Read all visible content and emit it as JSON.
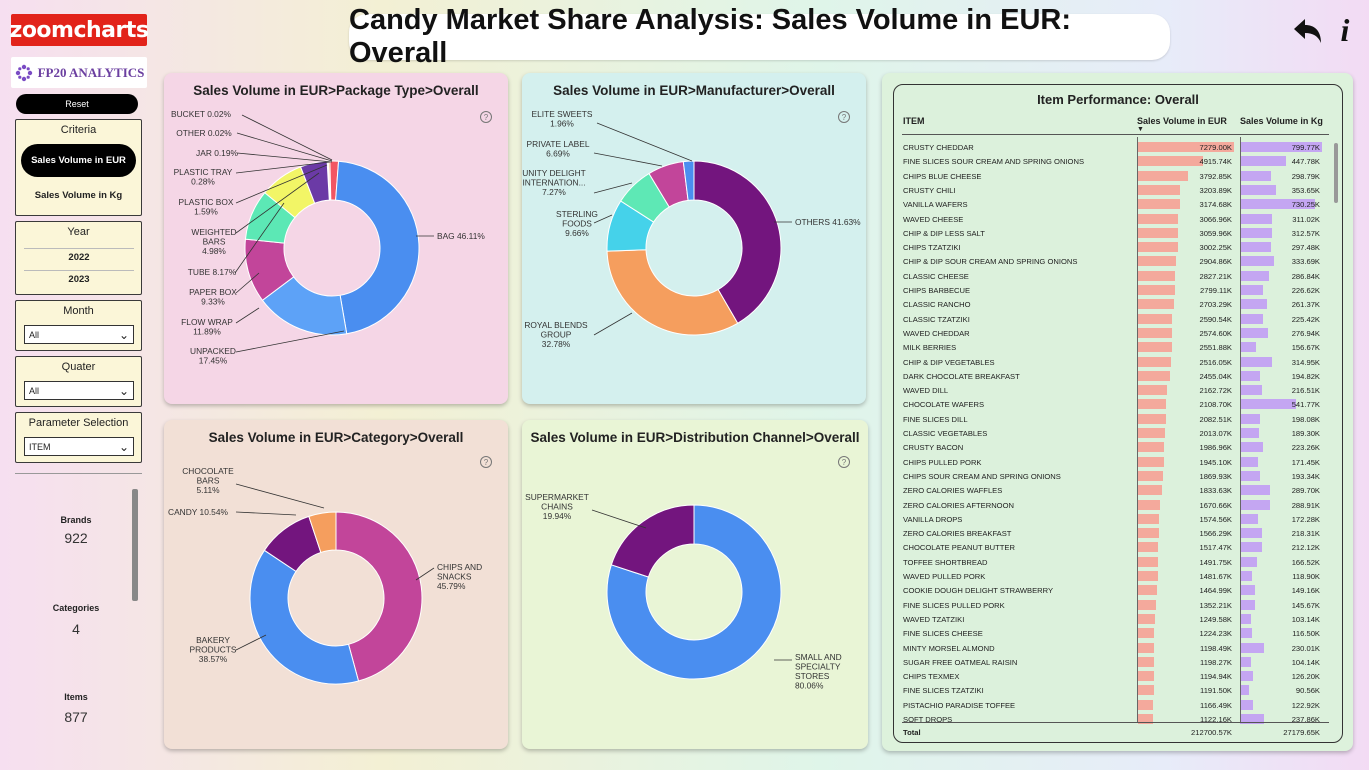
{
  "logos": {
    "zoomcharts": "zoomcharts",
    "fp20": "FP20 ANALYTICS"
  },
  "header": {
    "title": "Candy Market Share Analysis: Sales Volume in EUR: Overall"
  },
  "sidebar": {
    "reset_label": "Reset",
    "criteria": {
      "title": "Criteria",
      "options": [
        "Sales Volume in EUR",
        "Sales Volume in Kg"
      ],
      "selected": "Sales Volume in EUR"
    },
    "year": {
      "title": "Year",
      "options": [
        "2022",
        "2023"
      ]
    },
    "month": {
      "title": "Month",
      "value": "All"
    },
    "quater": {
      "title": "Quater",
      "value": "All"
    },
    "parameter": {
      "title": "Parameter Selection",
      "value": "ITEM"
    },
    "kpis": [
      {
        "label": "Brands",
        "value": "922"
      },
      {
        "label": "Categories",
        "value": "4"
      },
      {
        "label": "Items",
        "value": "877"
      }
    ]
  },
  "chart_data": [
    {
      "type": "pie",
      "title": "Sales Volume in EUR>Package Type>Overall",
      "slices": [
        {
          "label": "BAG",
          "value": 46.11,
          "color": "#4a8ef0"
        },
        {
          "label": "UNPACKED",
          "value": 17.45,
          "color": "#5da2f7"
        },
        {
          "label": "FLOW WRAP",
          "value": 11.89,
          "color": "#c2459a"
        },
        {
          "label": "PAPER BOX",
          "value": 9.33,
          "color": "#5ce8b5"
        },
        {
          "label": "TUBE",
          "value": 8.17,
          "color": "#f2f566"
        },
        {
          "label": "WEIGHTED BARS",
          "value": 4.98,
          "color": "#6b3aa6"
        },
        {
          "label": "PLASTIC BOX",
          "value": 1.59,
          "color": "#f25663"
        },
        {
          "label": "PLASTIC TRAY",
          "value": 0.28,
          "color": "#f5a05a"
        },
        {
          "label": "JAR",
          "value": 0.19,
          "color": "#3ba7d9"
        },
        {
          "label": "OTHER",
          "value": 0.02,
          "color": "#7c5bd6"
        },
        {
          "label": "BUCKET",
          "value": 0.02,
          "color": "#d0569b"
        }
      ],
      "labels_text": [
        "BUCKET 0.02%",
        "OTHER 0.02%",
        "JAR 0.19%",
        "PLASTIC TRAY",
        "0.28%",
        "PLASTIC BOX",
        "1.59%",
        "WEIGHTED",
        "BARS",
        "4.98%",
        "TUBE 8.17%",
        "PAPER BOX",
        "9.33%",
        "FLOW WRAP",
        "11.89%",
        "UNPACKED",
        "17.45%",
        "BAG 46.11%"
      ]
    },
    {
      "type": "pie",
      "title": "Sales Volume in EUR>Manufacturer>Overall",
      "slices": [
        {
          "label": "OTHERS",
          "value": 41.63,
          "color": "#73157e"
        },
        {
          "label": "ROYAL BLENDS GROUP",
          "value": 32.78,
          "color": "#f59e5e"
        },
        {
          "label": "STERLING FOODS",
          "value": 9.66,
          "color": "#45d2ea"
        },
        {
          "label": "UNITY DELIGHT INTERNATION...",
          "value": 7.27,
          "color": "#5ee8b5"
        },
        {
          "label": "PRIVATE LABEL",
          "value": 6.69,
          "color": "#c2459a"
        },
        {
          "label": "ELITE SWEETS",
          "value": 1.96,
          "color": "#4a8ef0"
        }
      ],
      "labels_text": [
        "ELITE SWEETS",
        "1.96%",
        "PRIVATE LABEL",
        "6.69%",
        "UNITY DELIGHT",
        "INTERNATION...",
        "7.27%",
        "STERLING",
        "FOODS",
        "9.66%",
        "ROYAL BLENDS",
        "GROUP",
        "32.78%",
        "OTHERS 41.63%"
      ]
    },
    {
      "type": "pie",
      "title": "Sales Volume in EUR>Category>Overall",
      "slices": [
        {
          "label": "CHIPS AND SNACKS",
          "value": 45.79,
          "color": "#c2459a"
        },
        {
          "label": "BAKERY PRODUCTS",
          "value": 38.57,
          "color": "#4a8ef0"
        },
        {
          "label": "CANDY",
          "value": 10.54,
          "color": "#73157e"
        },
        {
          "label": "CHOCOLATE BARS",
          "value": 5.11,
          "color": "#f59e5e"
        }
      ],
      "labels_text": [
        "CHOCOLATE",
        "BARS",
        "5.11%",
        "CANDY 10.54%",
        "CHIPS AND",
        "SNACKS",
        "45.79%",
        "BAKERY",
        "PRODUCTS",
        "38.57%"
      ]
    },
    {
      "type": "pie",
      "title": "Sales Volume in EUR>Distribution Channel>Overall",
      "slices": [
        {
          "label": "SMALL AND SPECIALTY STORES",
          "value": 80.06,
          "color": "#4a8ef0"
        },
        {
          "label": "SUPERMARKET CHAINS",
          "value": 19.94,
          "color": "#73157e"
        }
      ],
      "labels_text": [
        "SUPERMARKET",
        "CHAINS",
        "19.94%",
        "SMALL AND",
        "SPECIALTY",
        "STORES",
        "80.06%"
      ]
    }
  ],
  "table": {
    "title": "Item Performance: Overall",
    "headers": [
      "ITEM",
      "Sales Volume in EUR",
      "Sales Volume in Kg"
    ],
    "max_eur": 7279.0,
    "max_kg": 799.77,
    "rows": [
      {
        "item": "CRUSTY CHEDDAR",
        "eur": "7279.00K",
        "kg": "799.77K",
        "eur_n": 7279.0,
        "kg_n": 799.77
      },
      {
        "item": "FINE SLICES SOUR CREAM AND SPRING ONIONS",
        "eur": "4915.74K",
        "kg": "447.78K",
        "eur_n": 4915.74,
        "kg_n": 447.78
      },
      {
        "item": "CHIPS BLUE CHEESE",
        "eur": "3792.85K",
        "kg": "298.79K",
        "eur_n": 3792.85,
        "kg_n": 298.79
      },
      {
        "item": "CRUSTY CHILI",
        "eur": "3203.89K",
        "kg": "353.65K",
        "eur_n": 3203.89,
        "kg_n": 353.65
      },
      {
        "item": "VANILLA WAFERS",
        "eur": "3174.68K",
        "kg": "730.25K",
        "eur_n": 3174.68,
        "kg_n": 730.25
      },
      {
        "item": "WAVED CHEESE",
        "eur": "3066.96K",
        "kg": "311.02K",
        "eur_n": 3066.96,
        "kg_n": 311.02
      },
      {
        "item": "CHIP & DIP LESS SALT",
        "eur": "3059.96K",
        "kg": "312.57K",
        "eur_n": 3059.96,
        "kg_n": 312.57
      },
      {
        "item": "CHIPS TZATZIKI",
        "eur": "3002.25K",
        "kg": "297.48K",
        "eur_n": 3002.25,
        "kg_n": 297.48
      },
      {
        "item": "CHIP & DIP SOUR CREAM AND SPRING ONIONS",
        "eur": "2904.86K",
        "kg": "333.69K",
        "eur_n": 2904.86,
        "kg_n": 333.69
      },
      {
        "item": "CLASSIC CHEESE",
        "eur": "2827.21K",
        "kg": "286.84K",
        "eur_n": 2827.21,
        "kg_n": 286.84
      },
      {
        "item": "CHIPS BARBECUE",
        "eur": "2799.11K",
        "kg": "226.62K",
        "eur_n": 2799.11,
        "kg_n": 226.62
      },
      {
        "item": "CLASSIC RANCHO",
        "eur": "2703.29K",
        "kg": "261.37K",
        "eur_n": 2703.29,
        "kg_n": 261.37
      },
      {
        "item": "CLASSIC TZATZIKI",
        "eur": "2590.54K",
        "kg": "225.42K",
        "eur_n": 2590.54,
        "kg_n": 225.42
      },
      {
        "item": "WAVED CHEDDAR",
        "eur": "2574.60K",
        "kg": "276.94K",
        "eur_n": 2574.6,
        "kg_n": 276.94
      },
      {
        "item": "MILK BERRIES",
        "eur": "2551.88K",
        "kg": "156.67K",
        "eur_n": 2551.88,
        "kg_n": 156.67
      },
      {
        "item": "CHIP & DIP VEGETABLES",
        "eur": "2516.05K",
        "kg": "314.95K",
        "eur_n": 2516.05,
        "kg_n": 314.95
      },
      {
        "item": "DARK CHOCOLATE BREAKFAST",
        "eur": "2455.04K",
        "kg": "194.82K",
        "eur_n": 2455.04,
        "kg_n": 194.82
      },
      {
        "item": "WAVED DILL",
        "eur": "2162.72K",
        "kg": "216.51K",
        "eur_n": 2162.72,
        "kg_n": 216.51
      },
      {
        "item": "CHOCOLATE WAFERS",
        "eur": "2108.70K",
        "kg": "541.77K",
        "eur_n": 2108.7,
        "kg_n": 541.77
      },
      {
        "item": "FINE SLICES DILL",
        "eur": "2082.51K",
        "kg": "198.08K",
        "eur_n": 2082.51,
        "kg_n": 198.08
      },
      {
        "item": "CLASSIC VEGETABLES",
        "eur": "2013.07K",
        "kg": "189.30K",
        "eur_n": 2013.07,
        "kg_n": 189.3
      },
      {
        "item": "CRUSTY BACON",
        "eur": "1986.96K",
        "kg": "223.26K",
        "eur_n": 1986.96,
        "kg_n": 223.26
      },
      {
        "item": "CHIPS PULLED PORK",
        "eur": "1945.10K",
        "kg": "171.45K",
        "eur_n": 1945.1,
        "kg_n": 171.45
      },
      {
        "item": "CHIPS SOUR CREAM AND SPRING ONIONS",
        "eur": "1869.93K",
        "kg": "193.34K",
        "eur_n": 1869.93,
        "kg_n": 193.34
      },
      {
        "item": "ZERO CALORIES WAFFLES",
        "eur": "1833.63K",
        "kg": "289.70K",
        "eur_n": 1833.63,
        "kg_n": 289.7
      },
      {
        "item": "ZERO CALORIES AFTERNOON",
        "eur": "1670.66K",
        "kg": "288.91K",
        "eur_n": 1670.66,
        "kg_n": 288.91
      },
      {
        "item": "VANILLA DROPS",
        "eur": "1574.56K",
        "kg": "172.28K",
        "eur_n": 1574.56,
        "kg_n": 172.28
      },
      {
        "item": "ZERO CALORIES BREAKFAST",
        "eur": "1566.29K",
        "kg": "218.31K",
        "eur_n": 1566.29,
        "kg_n": 218.31
      },
      {
        "item": "CHOCOLATE PEANUT BUTTER",
        "eur": "1517.47K",
        "kg": "212.12K",
        "eur_n": 1517.47,
        "kg_n": 212.12
      },
      {
        "item": "TOFFEE SHORTBREAD",
        "eur": "1491.75K",
        "kg": "166.52K",
        "eur_n": 1491.75,
        "kg_n": 166.52
      },
      {
        "item": "WAVED PULLED PORK",
        "eur": "1481.67K",
        "kg": "118.90K",
        "eur_n": 1481.67,
        "kg_n": 118.9
      },
      {
        "item": "COOKIE DOUGH DELIGHT STRAWBERRY",
        "eur": "1464.99K",
        "kg": "149.16K",
        "eur_n": 1464.99,
        "kg_n": 149.16
      },
      {
        "item": "FINE SLICES PULLED PORK",
        "eur": "1352.21K",
        "kg": "145.67K",
        "eur_n": 1352.21,
        "kg_n": 145.67
      },
      {
        "item": "WAVED TZATZIKI",
        "eur": "1249.58K",
        "kg": "103.14K",
        "eur_n": 1249.58,
        "kg_n": 103.14
      },
      {
        "item": "FINE SLICES CHEESE",
        "eur": "1224.23K",
        "kg": "116.50K",
        "eur_n": 1224.23,
        "kg_n": 116.5
      },
      {
        "item": "MINTY MORSEL ALMOND",
        "eur": "1198.49K",
        "kg": "230.01K",
        "eur_n": 1198.49,
        "kg_n": 230.01
      },
      {
        "item": "SUGAR FREE OATMEAL RAISIN",
        "eur": "1198.27K",
        "kg": "104.14K",
        "eur_n": 1198.27,
        "kg_n": 104.14
      },
      {
        "item": "CHIPS TEXMEX",
        "eur": "1194.94K",
        "kg": "126.20K",
        "eur_n": 1194.94,
        "kg_n": 126.2
      },
      {
        "item": "FINE SLICES TZATZIKI",
        "eur": "1191.50K",
        "kg": "90.56K",
        "eur_n": 1191.5,
        "kg_n": 90.56
      },
      {
        "item": "PISTACHIO PARADISE TOFFEE",
        "eur": "1166.49K",
        "kg": "122.92K",
        "eur_n": 1166.49,
        "kg_n": 122.92
      },
      {
        "item": "SOFT DROPS",
        "eur": "1122.16K",
        "kg": "237.86K",
        "eur_n": 1122.16,
        "kg_n": 237.86
      }
    ],
    "total": {
      "label": "Total",
      "eur": "212700.57K",
      "kg": "27179.65K"
    }
  },
  "colors": {
    "eur_bar": "#f4a99c",
    "kg_bar": "#c4a6f2"
  }
}
